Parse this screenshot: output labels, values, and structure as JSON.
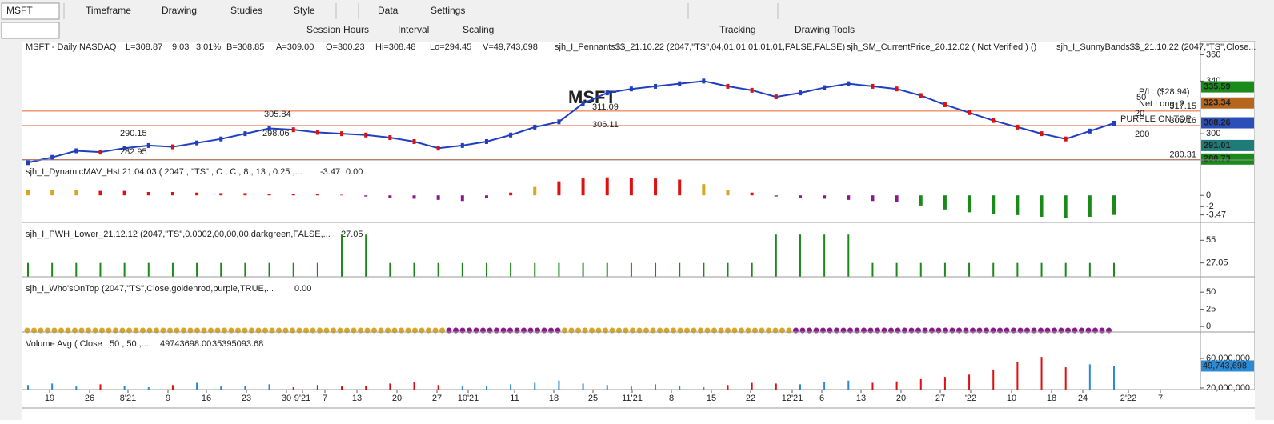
{
  "toolbar": {
    "symbol": "MSFT",
    "row1": [
      "Timeframe",
      "Drawing",
      "Studies",
      "Style",
      "Data",
      "Settings"
    ],
    "row2": [
      "Session Hours",
      "Interval",
      "Scaling",
      "Tracking",
      "Drawing Tools"
    ]
  },
  "header": {
    "items": [
      {
        "text": "MSFT - Daily NASDAQ",
        "color": "#9aa"
      },
      {
        "text": "L=308.87",
        "color": "#000"
      },
      {
        "text": "9.03",
        "color": "#1a8a1a"
      },
      {
        "text": "3.01%",
        "color": "#1a8a1a"
      },
      {
        "text": "B=308.85",
        "color": "#000"
      },
      {
        "text": "A=309.00",
        "color": "#000"
      },
      {
        "text": "O=300.23",
        "color": "#1a8a1a"
      },
      {
        "text": "Hi=308.48",
        "color": "#000"
      },
      {
        "text": "Lo=294.45",
        "color": "#000"
      },
      {
        "text": "V=49,743,698",
        "color": "#000"
      },
      {
        "text": "sjh_I_Pennants$$_21.10.22 (2047,\"TS\",04,01,01,01,01,01,FALSE,FALSE)",
        "color": "#000"
      },
      {
        "text": "sjh_SM_CurrentPrice_20.12.02 ( Not Verified ) ()",
        "color": "#000"
      },
      {
        "text": "sjh_I_SunnyBands$$_21.10.22 (2047,\"TS\",Close...",
        "color": "#000"
      }
    ]
  },
  "price_panel": {
    "watermark": "MSFT",
    "close": [
      278,
      282,
      287,
      286,
      289,
      291,
      290,
      293,
      296,
      300,
      304,
      303,
      301,
      300,
      299,
      297,
      294,
      289,
      291,
      294,
      299,
      305,
      309,
      323,
      331,
      334,
      336,
      338,
      340,
      336,
      333,
      328,
      331,
      335,
      338,
      336,
      334,
      329,
      322,
      316,
      310,
      305,
      300,
      296,
      302,
      308
    ],
    "ylim": [
      280,
      370
    ],
    "yticks": [
      360,
      340,
      300
    ],
    "levels": [
      {
        "value": 317.15,
        "color": "#e8602c"
      },
      {
        "value": 306.16,
        "color": "#e8602c"
      },
      {
        "value": 280.31,
        "color": "#e8602c"
      }
    ],
    "axis_labels": [
      {
        "value": 335.59,
        "color": "#1a8a1a"
      },
      {
        "value": 323.34,
        "color": "#b5651d"
      },
      {
        "value": 308.26,
        "color": "#2a4fb8"
      },
      {
        "value": 291.01,
        "color": "#1f7a7a"
      },
      {
        "value": 280.73,
        "color": "#1a8a1a"
      }
    ],
    "annotations": [
      {
        "text": "305.84",
        "color": "#1a237e"
      },
      {
        "text": "290.15",
        "color": "#1a237e"
      },
      {
        "text": "282.95",
        "color": "#222"
      },
      {
        "text": "298.06",
        "color": "#1a237e"
      },
      {
        "text": "311.09",
        "color": "#222"
      },
      {
        "text": "306.11",
        "color": "#222"
      },
      {
        "text": "P/L: ($28.94)",
        "color": "#e01010"
      },
      {
        "text": "Net Long: 2",
        "color": "#e01010"
      },
      {
        "text": "50",
        "color": "#c8a000"
      },
      {
        "text": "20",
        "color": "#2a2ab8"
      },
      {
        "text": "PURPLE ON TOP",
        "color": "#8a1a8a"
      },
      {
        "text": "200",
        "color": "#e01010"
      }
    ]
  },
  "mav_panel": {
    "title": "sjh_I_DynamicMAV_Hst 21.04.03 ( 2047 , \"TS\" , C , C ,  8 , 13 , 0.25 ,...",
    "last": -3.47,
    "zero": "0.00",
    "values": [
      1,
      1,
      1,
      0.8,
      0.8,
      0.6,
      0.6,
      0.5,
      0.4,
      0.4,
      0.3,
      0.3,
      0.2,
      0.1,
      -0.2,
      -0.4,
      -0.6,
      -0.8,
      -1,
      -0.5,
      0.5,
      1.5,
      2.5,
      3,
      3.2,
      3.1,
      3,
      2.8,
      2,
      1,
      0.5,
      -0.2,
      -0.5,
      -0.6,
      -0.8,
      -1,
      -1.2,
      -1.8,
      -2.5,
      -3,
      -3.3,
      -3.5,
      -3.8,
      -4,
      -3.8,
      -3.47
    ],
    "ylim": [
      -4.8,
      6
    ],
    "yticks": [
      0,
      -2,
      -3.47
    ]
  },
  "pwh_panel": {
    "title": "sjh_I_PWH_Lower_21.12.12 (2047,\"TS\",0.0002,00,00,00,darkgreen,FALSE,...",
    "last": 27.05,
    "values": [
      27.05,
      27.05,
      27.05,
      27.05,
      27.05,
      27.05,
      27.05,
      27.05,
      27.05,
      27.05,
      27.05,
      27.05,
      27.05,
      62,
      62,
      27.05,
      27.05,
      27.05,
      27.05,
      27.05,
      27.05,
      27.05,
      27.05,
      27.05,
      27.05,
      27.05,
      27.05,
      27.05,
      27.05,
      27.05,
      27.05,
      62,
      62,
      62,
      62,
      27.05,
      27.05,
      27.05,
      27.05,
      27.05,
      27.05,
      27.05,
      27.05,
      27.05,
      27.05,
      27.05
    ],
    "ylim": [
      10,
      75
    ],
    "yticks": [
      55,
      27.05
    ]
  },
  "wot_panel": {
    "title": "sjh_I_Who'sOnTop (2047,\"TS\",Close,goldenrod,purple,TRUE,...",
    "last": "0.00",
    "ylim": [
      -8,
      70
    ],
    "yticks": [
      50,
      25,
      0
    ]
  },
  "vol_panel": {
    "title": "Volume Avg ( Close , 50 , 50 ,...",
    "volume_label": "49743698.00",
    "avg_label": "35395093.68",
    "values": [
      24000000,
      26000000,
      22000000,
      25000000,
      23000000,
      21000000,
      24000000,
      27000000,
      22000000,
      23000000,
      25000000,
      21000000,
      24000000,
      22000000,
      23000000,
      26000000,
      28000000,
      24000000,
      22000000,
      23000000,
      25000000,
      27000000,
      30000000,
      26000000,
      24000000,
      22000000,
      25000000,
      23000000,
      21000000,
      24000000,
      27000000,
      26000000,
      25000000,
      28000000,
      30000000,
      27000000,
      29000000,
      32000000,
      35000000,
      38000000,
      45000000,
      55000000,
      62000000,
      48000000,
      52000000,
      49743698
    ],
    "ylim": [
      17800000,
      93500000
    ],
    "yticks": [
      {
        "value": 60000000,
        "label": "60,000,000"
      },
      {
        "value": 20000000,
        "label": "20,000,000"
      }
    ],
    "last": {
      "value": 49743698,
      "label": "49,743,698"
    }
  },
  "dates": [
    "19",
    "26",
    "8'21",
    "9",
    "16",
    "23",
    "30",
    "9'21",
    "7",
    "13",
    "20",
    "27",
    "10'21",
    "11",
    "18",
    "25",
    "11'21",
    "8",
    "15",
    "22",
    "12'21",
    "6",
    "13",
    "20",
    "27",
    "'22",
    "10",
    "18",
    "24",
    "2'22",
    "7"
  ]
}
